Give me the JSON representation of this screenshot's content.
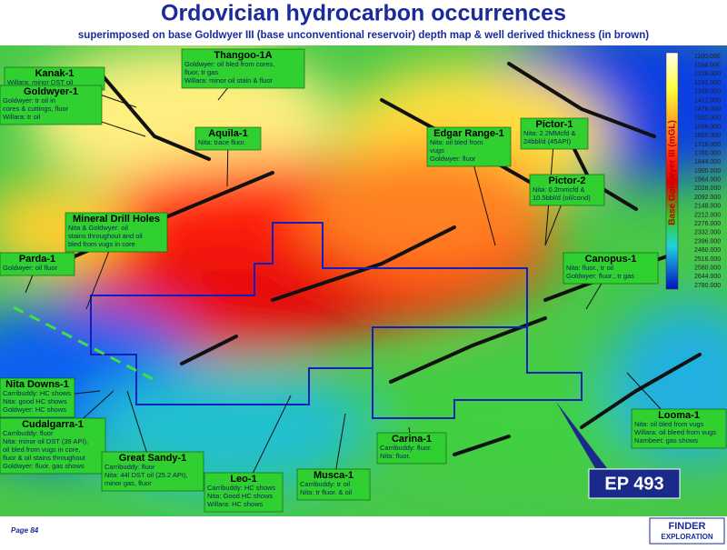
{
  "header": {
    "title": "Ordovician hydrocarbon occurrences",
    "subtitle": "superimposed on base Goldwyer III (base unconventional reservoir) depth map & well derived thickness (in brown)"
  },
  "legend": {
    "label": "Base Goldwyer III (mGL)",
    "ticks": [
      "1100.000",
      "1164.000",
      "1228.000",
      "1292.000",
      "1348.000",
      "1412.000",
      "1476.000",
      "1532.000",
      "1596.000",
      "1660.000",
      "1716.000",
      "1780.000",
      "1844.000",
      "1900.000",
      "1964.000",
      "2028.000",
      "2092.000",
      "2148.000",
      "2212.000",
      "2276.000",
      "2332.000",
      "2396.000",
      "2460.000",
      "2516.000",
      "2580.000",
      "2644.000",
      "2780.000"
    ]
  },
  "callouts": [
    {
      "name": "Kanak-1",
      "lines": [
        "Willara: minor DST oil"
      ]
    },
    {
      "name": "Goldwyer-1",
      "lines": [
        "Goldwyer: tr oil in",
        "cores & cuttings, fluor",
        "Willara: tr oil"
      ]
    },
    {
      "name": "Thangoo-1A",
      "lines": [
        "Goldwyer: oil bled from cores,",
        "fluor, tr gas",
        "Willara: minor oil stain & fluor"
      ]
    },
    {
      "name": "Aquila-1",
      "lines": [
        "Nita: trace fluor."
      ]
    },
    {
      "name": "Edgar Range-1",
      "lines": [
        "Nita: oil bled from",
        "vugs",
        "Goldwyer: fluor"
      ]
    },
    {
      "name": "Pictor-1",
      "lines": [
        "Nita: 2.2MMcfd &",
        "24bbl/d (45API)"
      ]
    },
    {
      "name": "Pictor-2",
      "lines": [
        "Nita: 0.2mmcfd &",
        "10.5bbl/d (oil/cond)"
      ]
    },
    {
      "name": "Mineral Drill Holes",
      "lines": [
        "Nita & Goldwyer: oil",
        "stains throughout and oil",
        "bled from vugs in core"
      ]
    },
    {
      "name": "Parda-1",
      "lines": [
        "Goldwyer: oil fluor"
      ]
    },
    {
      "name": "Canopus-1",
      "lines": [
        "Nita: fluor., tr oil",
        "Goldwyer: fluor., tr gas"
      ]
    },
    {
      "name": "Nita Downs-1",
      "lines": [
        "Carribuddy: HC shows",
        "Nita: good HC shows",
        "Goldwyer: HC shows"
      ]
    },
    {
      "name": "Cudalgarra-1",
      "lines": [
        "Carribuddy: fluor",
        "Nita: minor oil DST (39 API),",
        "oil bled from vugs in core,",
        "fluor & oil stains throughout",
        "Goldwyer: fluor, gas shows"
      ]
    },
    {
      "name": "Great Sandy-1",
      "lines": [
        "Carribuddy: fluor",
        "Nita: 44l DST oil (25.2 API),",
        "minor gas, fluor"
      ]
    },
    {
      "name": "Leo-1",
      "lines": [
        "Carribuddy: HC shows",
        "Nita: Good HC shows",
        "Willara: HC shows"
      ]
    },
    {
      "name": "Musca-1",
      "lines": [
        "Carribuddy: tr oil",
        "Nita: tr fluor. & oil"
      ]
    },
    {
      "name": "Carina-1",
      "lines": [
        "Carribuddy: fluor.",
        "Nita: fluor."
      ]
    },
    {
      "name": "Looma-1",
      "lines": [
        "Nita: oil bled from vugs",
        "Willara: oil bleed from vugs",
        "Nambeet: gas shows"
      ]
    }
  ],
  "permit": {
    "label": "EP 493"
  },
  "footer": {
    "page": "Page 84",
    "logo_line1": "FINDER",
    "logo_line2": "EXPLORATION"
  }
}
